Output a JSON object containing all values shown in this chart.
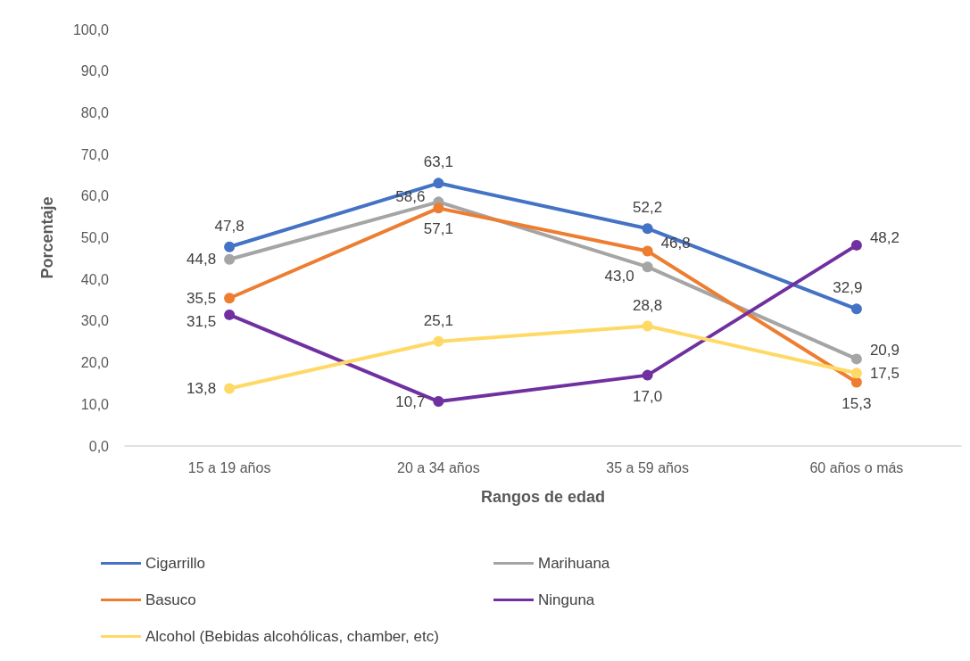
{
  "chart_data": {
    "type": "line",
    "xlabel": "Rangos de edad",
    "ylabel": "Porcentaje",
    "categories": [
      "15 a 19 años",
      "20 a 34 años",
      "35 a 59 años",
      "60 años o más"
    ],
    "series": [
      {
        "name": "Cigarrillo",
        "color": "#4472c4",
        "values": [
          47.8,
          63.1,
          52.2,
          32.9
        ],
        "value_labels": [
          "47,8",
          "63,1",
          "52,2",
          "32,9"
        ]
      },
      {
        "name": "Marihuana",
        "color": "#a5a5a5",
        "values": [
          44.8,
          58.6,
          43.0,
          20.9
        ],
        "value_labels": [
          "44,8",
          "58,6",
          "43,0",
          "20,9"
        ]
      },
      {
        "name": "Basuco",
        "color": "#ed7d31",
        "values": [
          35.5,
          57.1,
          46.8,
          15.3
        ],
        "value_labels": [
          "35,5",
          "57,1",
          "46,8",
          "15,3"
        ]
      },
      {
        "name": "Ninguna",
        "color": "#7030a0",
        "values": [
          31.5,
          10.7,
          17.0,
          48.2
        ],
        "value_labels": [
          "31,5",
          "10,7",
          "17,0",
          "48,2"
        ]
      },
      {
        "name": "Alcohol (Bebidas alcohólicas, chamber, etc)",
        "color": "#ffd966",
        "values": [
          13.8,
          25.1,
          28.8,
          17.5
        ],
        "value_labels": [
          "13,8",
          "25,1",
          "28,8",
          "17,5"
        ]
      }
    ],
    "ylim": [
      0,
      100
    ],
    "yticks": [
      {
        "value": 0,
        "label": "0,0"
      },
      {
        "value": 10,
        "label": "10,0"
      },
      {
        "value": 20,
        "label": "20,0"
      },
      {
        "value": 30,
        "label": "30,0"
      },
      {
        "value": 40,
        "label": "40,0"
      },
      {
        "value": 50,
        "label": "50,0"
      },
      {
        "value": 60,
        "label": "60,0"
      },
      {
        "value": 70,
        "label": "70,0"
      },
      {
        "value": 80,
        "label": "80,0"
      },
      {
        "value": 90,
        "label": "90,0"
      },
      {
        "value": 100,
        "label": "100,0"
      }
    ],
    "grid": false,
    "legend": "bottom",
    "marker": "circle",
    "line_style": "solid"
  }
}
